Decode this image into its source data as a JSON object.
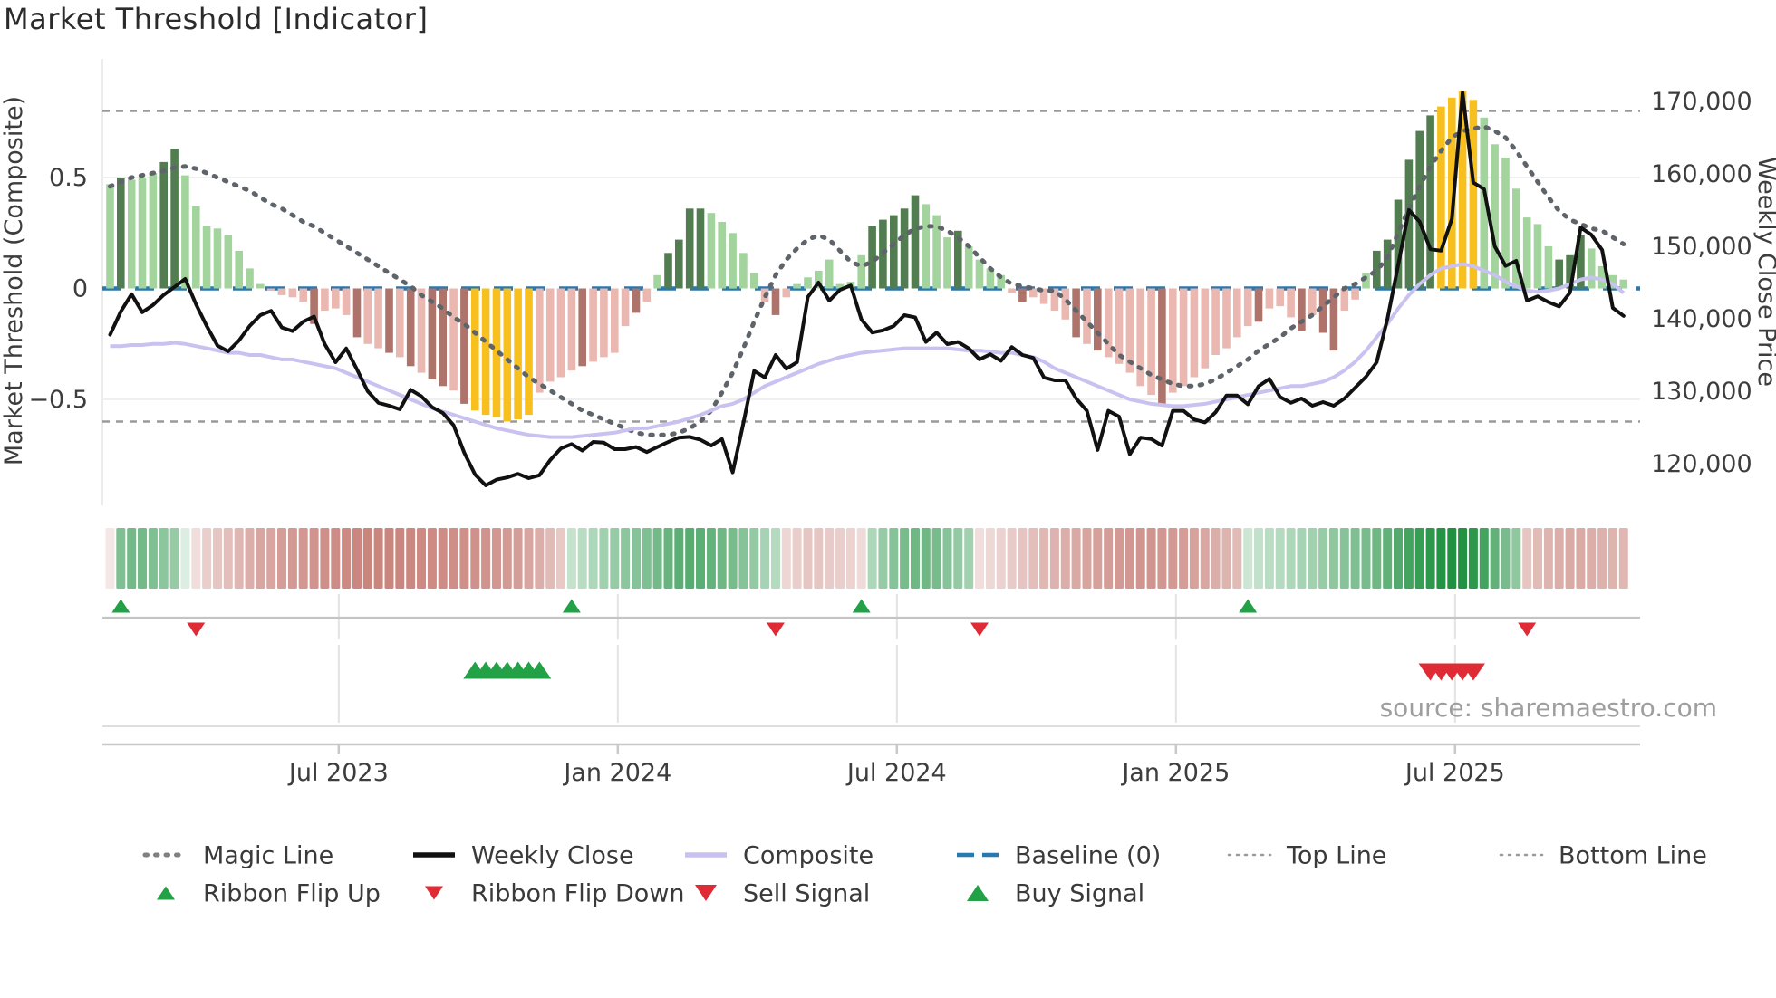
{
  "title": "Market Threshold [Indicator]",
  "source_text": "source: sharemaestro.com",
  "axes": {
    "left_label": "Market Threshold (Composite)",
    "right_label": "Weekly Close Price",
    "left_ticks": [
      {
        "label": "0.5",
        "value": 0.5
      },
      {
        "label": "0",
        "value": 0.0
      },
      {
        "label": "−0.5",
        "value": -0.5
      }
    ],
    "right_ticks": [
      {
        "label": "170,000",
        "value": 170.0
      },
      {
        "label": "160,000",
        "value": 160.0
      },
      {
        "label": "150,000",
        "value": 150.0
      },
      {
        "label": "140,000",
        "value": 140.0
      },
      {
        "label": "130,000",
        "value": 130.0
      },
      {
        "label": "120,000",
        "value": 120.0
      }
    ],
    "x_ticks": [
      {
        "label": "Jul 2023",
        "week": 21.3
      },
      {
        "label": "Jan 2024",
        "week": 47.3
      },
      {
        "label": "Jul 2024",
        "week": 73.3
      },
      {
        "label": "Jan 2025",
        "week": 99.3
      },
      {
        "label": "Jul 2025",
        "week": 125.3
      }
    ]
  },
  "legend": {
    "row1": [
      {
        "icon": "magic-line-icon",
        "label": "Magic Line"
      },
      {
        "icon": "weekly-close-icon",
        "label": "Weekly Close"
      },
      {
        "icon": "composite-icon",
        "label": "Composite"
      },
      {
        "icon": "baseline-icon",
        "label": "Baseline (0)"
      },
      {
        "icon": "top-line-icon",
        "label": "Top Line"
      },
      {
        "icon": "bottom-line-icon",
        "label": "Bottom Line"
      }
    ],
    "row2": [
      {
        "icon": "ribbon-flip-up-icon",
        "label": "Ribbon Flip Up"
      },
      {
        "icon": "ribbon-flip-down-icon",
        "label": "Ribbon Flip Down"
      },
      {
        "icon": "sell-signal-icon",
        "label": "Sell Signal"
      },
      {
        "icon": "buy-signal-icon",
        "label": "Buy Signal"
      }
    ]
  },
  "colors": {
    "bar_light_green": "#a3d49e",
    "bar_dark_green": "#527d50",
    "bar_pink": "#eab7b1",
    "bar_dark_red": "#ae746c",
    "bar_gold": "#f7c01e",
    "weekly_close": "#111111",
    "magic_line": "#5f646b",
    "composite_line": "#c9c2f0",
    "baseline_blue": "#2879b0",
    "top_bottom_gray": "#9a9a9a",
    "ribbon_green_full": "#168c38",
    "ribbon_red_full": "#b85c52",
    "flip_up_green": "#22a146",
    "flip_down_red": "#df2b35",
    "axis_text": "#3d3d3d",
    "source_gray": "#9e9e9e",
    "grid_light": "#efefef",
    "axis_line_gray": "#c9c9c9"
  },
  "chart_data": {
    "type": "bar",
    "title": "Market Threshold [Indicator]",
    "xlabel": "",
    "ylabel_left": "Market Threshold (Composite)",
    "ylabel_right": "Weekly Close Price",
    "x_unit": "week_index",
    "n_weeks": 142,
    "x_tick_labels": [
      "Jul 2023",
      "Jan 2024",
      "Jul 2024",
      "Jan 2025",
      "Jul 2025"
    ],
    "x_tick_weeks": [
      21.3,
      47.3,
      73.3,
      99.3,
      125.3
    ],
    "ylim_left": [
      -1.0,
      1.04
    ],
    "ylim_right_price": [
      114250,
      172875
    ],
    "baseline": 0,
    "top_line": 0.8,
    "bottom_line": -0.6,
    "grid_left_values": [
      0.5,
      -0.5
    ],
    "threshold_bars": {
      "values": [
        0.47,
        0.5,
        0.49,
        0.5,
        0.52,
        0.57,
        0.63,
        0.51,
        0.37,
        0.28,
        0.27,
        0.24,
        0.17,
        0.09,
        0.02,
        -0.01,
        -0.03,
        -0.04,
        -0.06,
        -0.16,
        -0.1,
        -0.09,
        -0.12,
        -0.22,
        -0.25,
        -0.27,
        -0.29,
        -0.31,
        -0.35,
        -0.38,
        -0.41,
        -0.44,
        -0.46,
        -0.52,
        -0.55,
        -0.57,
        -0.58,
        -0.6,
        -0.59,
        -0.57,
        -0.47,
        -0.42,
        -0.4,
        -0.37,
        -0.35,
        -0.33,
        -0.31,
        -0.29,
        -0.17,
        -0.11,
        -0.06,
        0.06,
        0.16,
        0.22,
        0.36,
        0.36,
        0.34,
        0.3,
        0.25,
        0.16,
        0.07,
        -0.06,
        -0.12,
        -0.04,
        0.02,
        0.05,
        0.08,
        0.13,
        0.02,
        0.03,
        0.15,
        0.28,
        0.31,
        0.33,
        0.36,
        0.42,
        0.38,
        0.33,
        0.23,
        0.26,
        0.19,
        0.13,
        0.09,
        0.06,
        -0.02,
        -0.06,
        -0.04,
        -0.07,
        -0.1,
        -0.14,
        -0.22,
        -0.25,
        -0.28,
        -0.31,
        -0.34,
        -0.38,
        -0.44,
        -0.48,
        -0.52,
        -0.47,
        -0.44,
        -0.4,
        -0.36,
        -0.3,
        -0.27,
        -0.22,
        -0.17,
        -0.15,
        -0.09,
        -0.08,
        -0.13,
        -0.19,
        -0.12,
        -0.2,
        -0.28,
        -0.1,
        -0.05,
        0.07,
        0.17,
        0.22,
        0.4,
        0.58,
        0.71,
        0.78,
        0.82,
        0.86,
        0.89,
        0.85,
        0.77,
        0.65,
        0.59,
        0.45,
        0.32,
        0.29,
        0.19,
        0.13,
        0.15,
        0.24,
        0.18,
        0.1,
        0.06,
        0.04
      ],
      "color_classes": "ldlllddllllllllpppprppprpprprprrprggggggpppprpppprplddddlllllprpllllllldddddllldllllprpppprprppppprpppppppprppprprrpplddddddggggllllllldddllll",
      "class_legend": {
        "l": "light-green",
        "d": "dark-green",
        "p": "pink",
        "r": "dark-red",
        "g": "gold"
      }
    },
    "weekly_close_thousands": [
      137.8,
      141,
      143.4,
      140.9,
      141.9,
      143.3,
      144.4,
      145.5,
      142,
      139,
      136.3,
      135.5,
      137,
      139,
      140.5,
      141.1,
      138.8,
      138.3,
      139.6,
      140.3,
      136.5,
      134,
      135.9,
      133,
      130,
      128.4,
      128,
      127.5,
      130.2,
      129.3,
      127.8,
      127,
      125.3,
      121.5,
      118.5,
      117,
      117.8,
      118.1,
      118.6,
      118,
      118.4,
      120.5,
      122.1,
      122.7,
      121.8,
      123,
      122.9,
      122,
      122,
      122.3,
      121.6,
      122.3,
      123,
      123.6,
      123.7,
      123.3,
      122.5,
      123.4,
      118.8,
      125.6,
      132.8,
      131.9,
      135,
      133.1,
      134,
      143,
      145,
      142.5,
      144,
      144.6,
      139.9,
      138.1,
      138.4,
      139,
      140.5,
      140.2,
      136.8,
      138.1,
      136.5,
      136.8,
      135.9,
      134.4,
      135.1,
      134.2,
      136.1,
      135,
      134.6,
      131.9,
      131.5,
      131.5,
      129,
      127.3,
      121.9,
      127.3,
      126.5,
      121.3,
      123.6,
      123.4,
      122.5,
      127.3,
      127.3,
      126.1,
      125.7,
      127.1,
      129.4,
      129.4,
      128.2,
      130.7,
      131.7,
      129.2,
      128.4,
      129,
      128,
      128.5,
      128,
      129,
      130.5,
      132,
      134,
      140,
      147.4,
      155,
      153.4,
      149.6,
      149.4,
      153.8,
      171.2,
      158.8,
      157.9,
      150,
      147.3,
      148,
      142.5,
      143.1,
      142.3,
      141.7,
      143.6,
      152.6,
      151.6,
      149.5,
      141.5,
      140.4
    ],
    "magic_line": [
      0.46,
      0.48,
      0.5,
      0.51,
      0.52,
      0.53,
      0.545,
      0.55,
      0.54,
      0.52,
      0.5,
      0.48,
      0.46,
      0.44,
      0.41,
      0.38,
      0.36,
      0.33,
      0.3,
      0.28,
      0.25,
      0.22,
      0.19,
      0.16,
      0.13,
      0.1,
      0.07,
      0.04,
      0.01,
      -0.03,
      -0.06,
      -0.09,
      -0.13,
      -0.16,
      -0.2,
      -0.24,
      -0.28,
      -0.32,
      -0.36,
      -0.4,
      -0.43,
      -0.46,
      -0.49,
      -0.52,
      -0.55,
      -0.57,
      -0.59,
      -0.61,
      -0.63,
      -0.65,
      -0.66,
      -0.66,
      -0.66,
      -0.65,
      -0.63,
      -0.6,
      -0.55,
      -0.47,
      -0.38,
      -0.27,
      -0.15,
      -0.04,
      0.06,
      0.13,
      0.18,
      0.22,
      0.24,
      0.22,
      0.17,
      0.12,
      0.1,
      0.12,
      0.16,
      0.2,
      0.24,
      0.27,
      0.28,
      0.28,
      0.26,
      0.23,
      0.19,
      0.14,
      0.09,
      0.05,
      0.02,
      0.01,
      0,
      -0.01,
      -0.01,
      -0.05,
      -0.1,
      -0.15,
      -0.2,
      -0.25,
      -0.3,
      -0.33,
      -0.36,
      -0.39,
      -0.41,
      -0.43,
      -0.44,
      -0.44,
      -0.43,
      -0.41,
      -0.38,
      -0.35,
      -0.32,
      -0.28,
      -0.25,
      -0.22,
      -0.18,
      -0.15,
      -0.12,
      -0.08,
      -0.04,
      0,
      0.02,
      0.05,
      0.08,
      0.14,
      0.25,
      0.36,
      0.46,
      0.55,
      0.62,
      0.68,
      0.71,
      0.72,
      0.73,
      0.71,
      0.68,
      0.62,
      0.55,
      0.48,
      0.41,
      0.35,
      0.31,
      0.29,
      0.27,
      0.26,
      0.23,
      0.2
    ],
    "composite_line": [
      -0.26,
      -0.26,
      -0.255,
      -0.255,
      -0.25,
      -0.25,
      -0.245,
      -0.25,
      -0.26,
      -0.27,
      -0.28,
      -0.29,
      -0.29,
      -0.3,
      -0.3,
      -0.31,
      -0.32,
      -0.32,
      -0.33,
      -0.34,
      -0.35,
      -0.36,
      -0.38,
      -0.4,
      -0.42,
      -0.44,
      -0.46,
      -0.48,
      -0.5,
      -0.52,
      -0.54,
      -0.555,
      -0.57,
      -0.585,
      -0.6,
      -0.615,
      -0.63,
      -0.64,
      -0.65,
      -0.66,
      -0.665,
      -0.67,
      -0.67,
      -0.67,
      -0.665,
      -0.66,
      -0.655,
      -0.65,
      -0.64,
      -0.63,
      -0.63,
      -0.62,
      -0.61,
      -0.6,
      -0.585,
      -0.57,
      -0.55,
      -0.53,
      -0.52,
      -0.5,
      -0.47,
      -0.44,
      -0.42,
      -0.4,
      -0.38,
      -0.36,
      -0.34,
      -0.325,
      -0.31,
      -0.3,
      -0.29,
      -0.285,
      -0.28,
      -0.275,
      -0.27,
      -0.27,
      -0.27,
      -0.27,
      -0.27,
      -0.275,
      -0.28,
      -0.28,
      -0.285,
      -0.29,
      -0.29,
      -0.3,
      -0.31,
      -0.33,
      -0.36,
      -0.38,
      -0.4,
      -0.42,
      -0.44,
      -0.46,
      -0.48,
      -0.5,
      -0.51,
      -0.52,
      -0.525,
      -0.53,
      -0.53,
      -0.525,
      -0.52,
      -0.51,
      -0.5,
      -0.49,
      -0.48,
      -0.47,
      -0.46,
      -0.45,
      -0.44,
      -0.44,
      -0.43,
      -0.42,
      -0.4,
      -0.37,
      -0.33,
      -0.28,
      -0.22,
      -0.16,
      -0.09,
      -0.03,
      0.02,
      0.06,
      0.09,
      0.1,
      0.11,
      0.1,
      0.08,
      0.06,
      0.03,
      0.01,
      -0.01,
      -0.015,
      -0.01,
      0,
      0.02,
      0.04,
      0.05,
      0.04,
      0.02,
      -0.02
    ],
    "ribbon": [
      -0.15,
      0.55,
      0.6,
      0.6,
      0.55,
      0.5,
      0.45,
      0.15,
      -0.2,
      -0.3,
      -0.35,
      -0.4,
      -0.45,
      -0.5,
      -0.55,
      -0.55,
      -0.6,
      -0.62,
      -0.64,
      -0.66,
      -0.68,
      -0.7,
      -0.72,
      -0.74,
      -0.75,
      -0.75,
      -0.75,
      -0.74,
      -0.73,
      -0.72,
      -0.71,
      -0.7,
      -0.69,
      -0.68,
      -0.67,
      -0.66,
      -0.64,
      -0.62,
      -0.6,
      -0.55,
      -0.5,
      -0.42,
      -0.33,
      0.25,
      0.3,
      0.35,
      0.4,
      0.45,
      0.5,
      0.52,
      0.55,
      0.6,
      0.65,
      0.7,
      0.72,
      0.7,
      0.66,
      0.62,
      0.58,
      0.52,
      0.46,
      0.38,
      0.32,
      -0.25,
      -0.3,
      -0.35,
      -0.35,
      -0.32,
      -0.3,
      -0.27,
      -0.22,
      0.35,
      0.45,
      0.52,
      0.58,
      0.62,
      0.62,
      0.58,
      0.52,
      0.46,
      0.4,
      -0.2,
      -0.24,
      -0.28,
      -0.32,
      -0.36,
      -0.4,
      -0.44,
      -0.47,
      -0.5,
      -0.53,
      -0.56,
      -0.58,
      -0.6,
      -0.62,
      -0.64,
      -0.65,
      -0.65,
      -0.64,
      -0.62,
      -0.6,
      -0.57,
      -0.54,
      -0.5,
      -0.46,
      -0.42,
      0.22,
      0.26,
      0.3,
      0.32,
      0.35,
      0.38,
      0.4,
      0.44,
      0.48,
      0.52,
      0.55,
      0.58,
      0.62,
      0.68,
      0.74,
      0.8,
      0.86,
      0.9,
      0.94,
      0.96,
      0.95,
      0.9,
      0.8,
      0.68,
      0.58,
      0.48,
      -0.35,
      -0.42,
      -0.46,
      -0.5,
      -0.52,
      -0.52,
      -0.5,
      -0.48,
      -0.46,
      -0.44
    ],
    "ribbon_flip_up_weeks": [
      1,
      43,
      70,
      106
    ],
    "ribbon_flip_down_weeks": [
      8,
      62,
      81,
      132
    ],
    "buy_signal_weeks": [
      34,
      35,
      36,
      37,
      38,
      39,
      40
    ],
    "sell_signal_weeks": [
      123,
      124,
      125,
      126,
      127
    ]
  }
}
